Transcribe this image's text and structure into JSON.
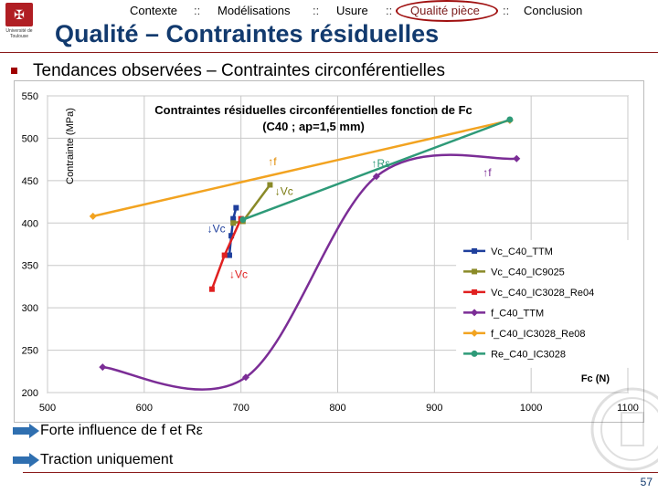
{
  "logo": {
    "text": "Université de Toulouse"
  },
  "nav": {
    "items": [
      "Contexte",
      "Modélisations",
      "Usure",
      "Qualité pièce",
      "Conclusion"
    ],
    "separator": "::",
    "active_index": 3
  },
  "title": "Qualité – Contraintes résiduelles",
  "subtitle": "Tendances observées – Contraintes circonférentielles",
  "bullets": [
    "Forte influence de f et Rε",
    "Traction uniquement"
  ],
  "page_number": "57",
  "colors": {
    "title": "#123a6e",
    "accent": "#a00000"
  },
  "chart_data": {
    "type": "line",
    "title": "Contraintes résiduelles circonférentielles fonction de Fc",
    "subtitle": "(C40 ; ap=1,5 mm)",
    "xlabel": "Fc (N)",
    "ylabel": "Contrainte (MPa)",
    "xlim": [
      500,
      1100
    ],
    "ylim": [
      200,
      550
    ],
    "xticks": [
      500,
      600,
      700,
      800,
      900,
      1000,
      1100
    ],
    "yticks": [
      200,
      250,
      300,
      350,
      400,
      450,
      500,
      550
    ],
    "grid": true,
    "legend_position": "right",
    "series": [
      {
        "name": "Vc_C40_TTM",
        "color": "#1f3f9c",
        "marker": "square",
        "smooth": false,
        "x": [
          688,
          690,
          692,
          695
        ],
        "y": [
          362,
          385,
          405,
          418
        ]
      },
      {
        "name": "Vc_C40_IC9025",
        "color": "#8a8a28",
        "marker": "square",
        "smooth": false,
        "x": [
          692,
          702,
          730
        ],
        "y": [
          400,
          402,
          445
        ]
      },
      {
        "name": "Vc_C40_IC3028_Re04",
        "color": "#e02020",
        "marker": "square",
        "smooth": false,
        "x": [
          670,
          683,
          700
        ],
        "y": [
          322,
          362,
          405
        ]
      },
      {
        "name": "f_C40_TTM",
        "color": "#7b2d96",
        "marker": "diamond",
        "smooth": true,
        "x": [
          557,
          705,
          840,
          985
        ],
        "y": [
          230,
          218,
          455,
          476
        ]
      },
      {
        "name": "f_C40_IC3028_Re08",
        "color": "#f2a320",
        "marker": "diamond",
        "smooth": false,
        "x": [
          547,
          978
        ],
        "y": [
          408,
          521
        ]
      },
      {
        "name": "Re_C40_IC3028",
        "color": "#2e9a78",
        "marker": "circle",
        "smooth": false,
        "x": [
          702,
          978
        ],
        "y": [
          404,
          522
        ]
      }
    ],
    "annotations": [
      {
        "text": "↑f",
        "x": 728,
        "y": 468,
        "color": "#e08a00"
      },
      {
        "text": "↓Vc",
        "x": 735,
        "y": 433,
        "color": "#7a7a10"
      },
      {
        "text": "↓Vc",
        "x": 665,
        "y": 389,
        "color": "#1f3f9c"
      },
      {
        "text": "↓Vc",
        "x": 688,
        "y": 335,
        "color": "#e02020"
      },
      {
        "text": "↑Rε",
        "x": 835,
        "y": 466,
        "color": "#2e9a78"
      },
      {
        "text": "↑f",
        "x": 950,
        "y": 455,
        "color": "#7b2d96"
      }
    ]
  }
}
